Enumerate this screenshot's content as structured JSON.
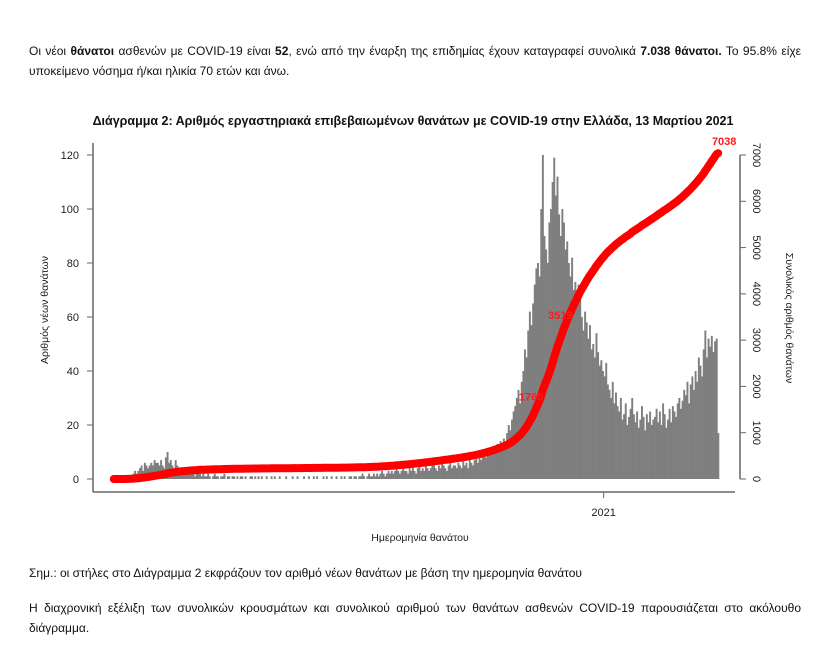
{
  "intro": {
    "t1": "Οι νέοι ",
    "b1": "θάνατοι",
    "t2": " ασθενών με COVID-19 είναι ",
    "b2": "52",
    "t3": ", ενώ από την έναρξη της επιδημίας έχουν καταγραφεί συνολικά ",
    "b3": "7.038 θάνατοι.",
    "t4": "  Το 95.8% είχε υποκείμενο νόσημα ή/και ηλικία 70 ετών και άνω."
  },
  "note": "Σημ.: οι στήλες στο Διάγραμμα 2 εκφράζουν τον αριθμό νέων θανάτων με βάση την ημερομηνία θανάτου",
  "paragraph2": "Η διαχρονική εξέλιξη των συνολικών κρουσμάτων και συνολικού αριθμού των θανάτων ασθενών COVID-19 παρουσιάζεται στο ακόλουθο διάγραμμα.",
  "chart_data": {
    "type": "bar",
    "title": "Διάγραμμα 2: Αριθμός εργαστηριακά επιβεβαιωμένων θανάτων με COVID-19 στην Ελλάδα, 13 Μαρτίου 2021",
    "xlabel": "Ημερομηνία θανάτου",
    "ylabel": "Αριθμός νέων θανάτων",
    "y2label": "Συνολικός αριθμός θανάτων",
    "ylim": [
      0,
      120
    ],
    "y2lim": [
      0,
      7000
    ],
    "yticks": [
      "0",
      "20",
      "40",
      "60",
      "80",
      "100",
      "120"
    ],
    "y2ticks": [
      "0",
      "1000",
      "2000",
      "3000",
      "4000",
      "5000",
      "6000",
      "7000"
    ],
    "xticks": [
      {
        "label": "2021",
        "date": "2021-01-01"
      }
    ],
    "x_start": "2020-03-05",
    "x_end": "2021-03-12",
    "bar_color": "#7f7f7f",
    "line_color": "#ff0000",
    "series": [
      {
        "type": "bar",
        "values": [
          0,
          0,
          0,
          0,
          0,
          0,
          1,
          0,
          1,
          1,
          1,
          1,
          2,
          3,
          2,
          3,
          4,
          5,
          3,
          6,
          5,
          4,
          5,
          6,
          5,
          7,
          6,
          6,
          5,
          7,
          5,
          4,
          8,
          10,
          6,
          7,
          5,
          4,
          7,
          5,
          3,
          4,
          4,
          3,
          2,
          4,
          3,
          4,
          2,
          3,
          1,
          2,
          3,
          2,
          1,
          2,
          1,
          1,
          2,
          1,
          0,
          1,
          2,
          1,
          1,
          0,
          1,
          1,
          2,
          0,
          1,
          1,
          0,
          1,
          1,
          0,
          1,
          0,
          1,
          1,
          0,
          1,
          0,
          0,
          1,
          1,
          0,
          1,
          0,
          1,
          0,
          1,
          0,
          0,
          1,
          0,
          0,
          1,
          0,
          1,
          0,
          0,
          1,
          0,
          0,
          0,
          1,
          0,
          0,
          0,
          1,
          0,
          0,
          1,
          0,
          0,
          0,
          1,
          0,
          0,
          1,
          0,
          0,
          1,
          0,
          1,
          0,
          0,
          0,
          1,
          0,
          1,
          0,
          0,
          1,
          0,
          0,
          1,
          0,
          0,
          1,
          0,
          1,
          0,
          0,
          1,
          1,
          0,
          1,
          1,
          0,
          1,
          1,
          2,
          1,
          0,
          1,
          2,
          1,
          1,
          2,
          1,
          2,
          1,
          2,
          3,
          2,
          1,
          2,
          3,
          2,
          3,
          2,
          3,
          4,
          3,
          2,
          3,
          4,
          3,
          3,
          2,
          4,
          3,
          5,
          3,
          2,
          4,
          5,
          3,
          4,
          3,
          5,
          4,
          3,
          4,
          5,
          6,
          4,
          3,
          5,
          4,
          6,
          5,
          4,
          3,
          5,
          6,
          4,
          5,
          5,
          4,
          6,
          5,
          4,
          7,
          5,
          6,
          4,
          8,
          6,
          5,
          7,
          9,
          6,
          8,
          7,
          10,
          9,
          8,
          11,
          10,
          9,
          12,
          11,
          10,
          13,
          12,
          14,
          11,
          15,
          14,
          17,
          20,
          18,
          22,
          25,
          27,
          30,
          33,
          28,
          36,
          40,
          48,
          45,
          55,
          62,
          57,
          65,
          72,
          78,
          80,
          75,
          100,
          120,
          90,
          85,
          80,
          95,
          100,
          110,
          119,
          105,
          112,
          98,
          90,
          100,
          95,
          85,
          88,
          80,
          75,
          82,
          70,
          73,
          65,
          72,
          68,
          60,
          55,
          62,
          58,
          52,
          57,
          48,
          50,
          45,
          54,
          47,
          42,
          44,
          40,
          38,
          43,
          35,
          33,
          30,
          36,
          28,
          32,
          27,
          25,
          30,
          22,
          24,
          28,
          20,
          23,
          26,
          30,
          24,
          21,
          25,
          19,
          22,
          27,
          23,
          18,
          24,
          21,
          25,
          20,
          22,
          23,
          26,
          21,
          25,
          20,
          28,
          24,
          19,
          22,
          26,
          21,
          27,
          25,
          23,
          28,
          30,
          26,
          29,
          33,
          31,
          36,
          28,
          35,
          38,
          33,
          40,
          36,
          45,
          42,
          38,
          48,
          55,
          45,
          52,
          49,
          53,
          47,
          51,
          52,
          17
        ]
      },
      {
        "type": "line",
        "cumulative": true,
        "axis": "right"
      }
    ],
    "annotations": [
      {
        "label": "1760",
        "value": 1760
      },
      {
        "label": "3519",
        "value": 3519
      },
      {
        "label": "7038",
        "value": 7038
      }
    ],
    "grid": false,
    "legend": "none"
  }
}
